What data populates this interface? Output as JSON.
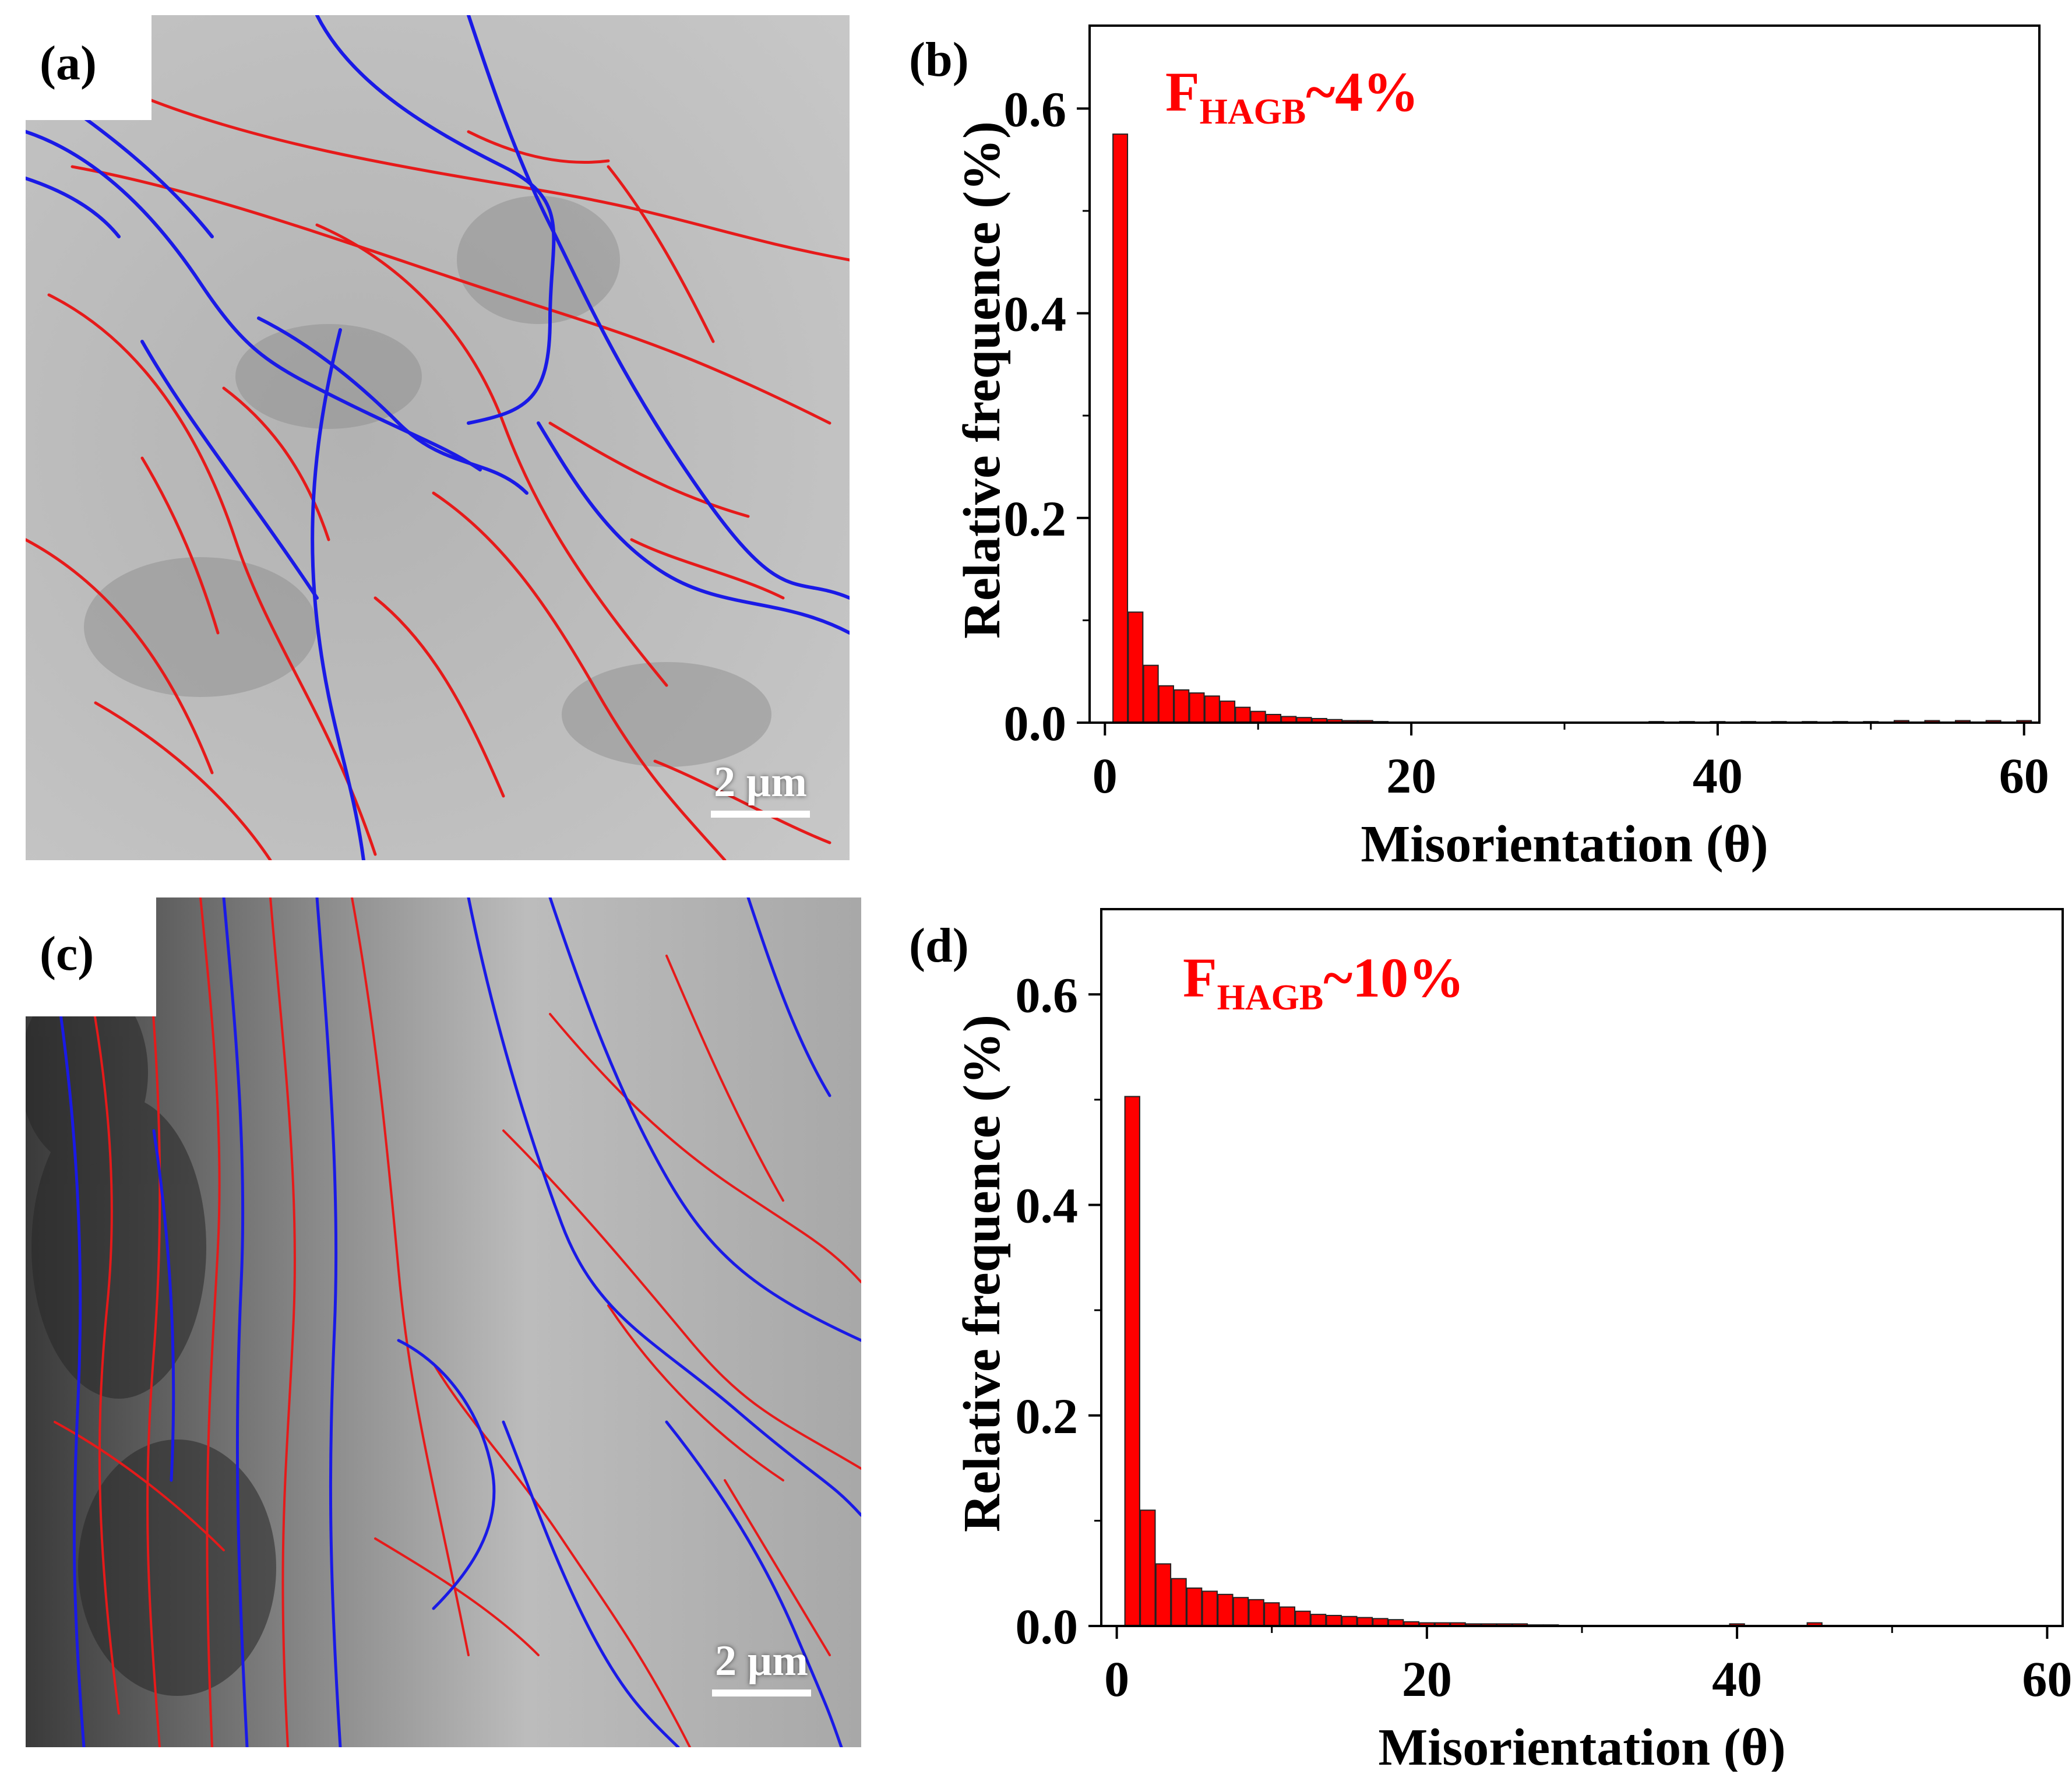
{
  "micrographs": [
    {
      "label": "(a)",
      "scale_label": "2 µm",
      "boundary_colors": {
        "high_angle": "#1a1ae6",
        "low_angle": "#e61a1a"
      }
    },
    {
      "label": "(c)",
      "scale_label": "2 µm",
      "boundary_colors": {
        "high_angle": "#1a1ae6",
        "low_angle": "#e61a1a"
      }
    }
  ],
  "chart_data": [
    {
      "panel": "(b)",
      "type": "bar",
      "annotation": {
        "main": "F",
        "sub": "HAGB",
        "tail": "~4%",
        "color": "#ff0000"
      },
      "xlabel": "Misorientation (θ)",
      "ylabel": "Relative  frequence  (%)",
      "xlim": [
        -1,
        61
      ],
      "ylim": [
        0,
        0.6
      ],
      "xticks": [
        0,
        20,
        40,
        60
      ],
      "yticks": [
        0.0,
        0.2,
        0.4,
        0.6
      ],
      "ytick_labels": [
        "0.0",
        "0.2",
        "0.4",
        "0.6"
      ],
      "bar_color": "#ff0000",
      "x": [
        1,
        2,
        3,
        4,
        5,
        6,
        7,
        8,
        9,
        10,
        11,
        12,
        13,
        14,
        15,
        16,
        17,
        18,
        36,
        38,
        40,
        42,
        44,
        46,
        48,
        50,
        52,
        54,
        56,
        58,
        60
      ],
      "values": [
        0.575,
        0.108,
        0.056,
        0.036,
        0.032,
        0.029,
        0.026,
        0.021,
        0.015,
        0.011,
        0.008,
        0.006,
        0.005,
        0.004,
        0.003,
        0.002,
        0.002,
        0.001,
        0.001,
        0.001,
        0.001,
        0.001,
        0.001,
        0.001,
        0.001,
        0.001,
        0.002,
        0.002,
        0.002,
        0.002,
        0.002
      ]
    },
    {
      "panel": "(d)",
      "type": "bar",
      "annotation": {
        "main": "F",
        "sub": "HAGB",
        "tail": "~10%",
        "color": "#ff0000"
      },
      "xlabel": "Misorientation (θ)",
      "ylabel": "Relative frequence (%)",
      "xlim": [
        -1,
        61
      ],
      "ylim": [
        0,
        0.6
      ],
      "xticks": [
        0,
        20,
        40,
        60
      ],
      "yticks": [
        0.0,
        0.2,
        0.4,
        0.6
      ],
      "ytick_labels": [
        "0.0",
        "0.2",
        "0.4",
        "0.6"
      ],
      "bar_color": "#ff0000",
      "x": [
        1,
        2,
        3,
        4,
        5,
        6,
        7,
        8,
        9,
        10,
        11,
        12,
        13,
        14,
        15,
        16,
        17,
        18,
        19,
        20,
        21,
        22,
        23,
        24,
        25,
        26,
        27,
        28,
        40,
        45
      ],
      "values": [
        0.503,
        0.11,
        0.059,
        0.045,
        0.036,
        0.033,
        0.03,
        0.027,
        0.025,
        0.022,
        0.018,
        0.014,
        0.011,
        0.01,
        0.009,
        0.008,
        0.007,
        0.006,
        0.004,
        0.003,
        0.003,
        0.003,
        0.002,
        0.002,
        0.002,
        0.002,
        0.001,
        0.001,
        0.002,
        0.003
      ]
    }
  ]
}
